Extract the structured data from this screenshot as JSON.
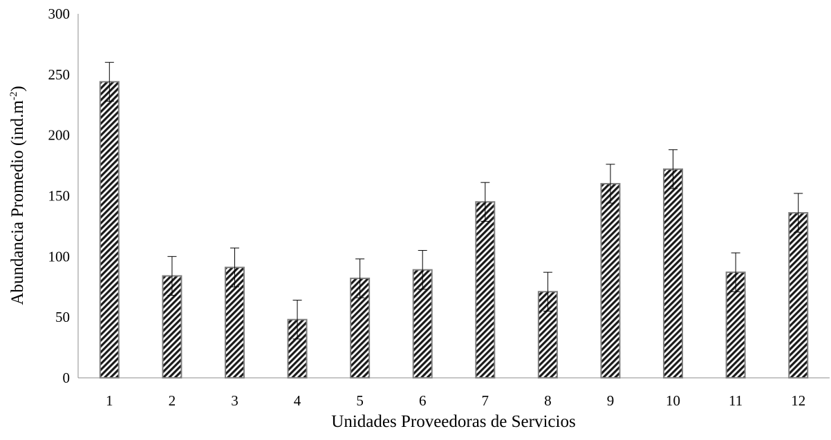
{
  "chart_data": {
    "type": "bar",
    "title": "",
    "xlabel": "Unidades Proveedoras de Servicios",
    "ylabel_main": "Abundancia Promedio (ind.m",
    "ylabel_sup": "-2",
    "ylabel_close": ")",
    "categories": [
      "1",
      "2",
      "3",
      "4",
      "5",
      "6",
      "7",
      "8",
      "9",
      "10",
      "11",
      "12"
    ],
    "values": [
      244,
      84,
      91,
      48,
      82,
      89,
      145,
      71,
      160,
      172,
      87,
      136
    ],
    "error": [
      16,
      16,
      16,
      16,
      16,
      16,
      16,
      16,
      16,
      16,
      16,
      16
    ],
    "ylim": [
      0,
      300
    ],
    "yticks": [
      "0",
      "50",
      "100",
      "150",
      "200",
      "250",
      "300"
    ],
    "grid": false,
    "legend": "none",
    "colors": {
      "bar_fill_light": "#ffffff",
      "bar_fill_dark": "#1a1a1a",
      "bar_border": "#7f7f7f",
      "axis": "#8c8c8c",
      "error_bar": "#000000"
    }
  }
}
